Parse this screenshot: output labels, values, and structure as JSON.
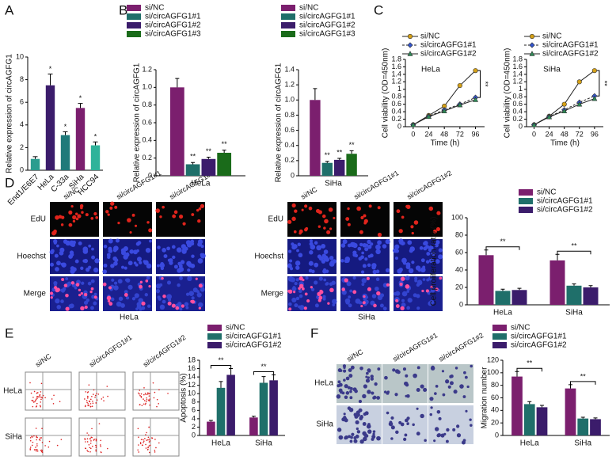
{
  "panel_labels": [
    "A",
    "B",
    "C",
    "D",
    "E",
    "F"
  ],
  "images": {
    "D": {
      "columns": [
        "si/NC",
        "si/circAGFG1#1",
        "si/circAGFG1#2"
      ],
      "rows": [
        "EdU",
        "Hoechst",
        "Merge"
      ],
      "captions": [
        "HeLa",
        "SiHa"
      ]
    },
    "E": {
      "columns": [
        "si/NC",
        "si/circAGFG1#1",
        "si/circAGFG1#2"
      ],
      "rows": [
        "HeLa",
        "SiHa"
      ]
    },
    "F": {
      "columns": [
        "si/NC",
        "si/circAGFG1#1",
        "si/circAGFG1#2"
      ],
      "rows": [
        "HeLa",
        "SiHa"
      ]
    }
  },
  "chart_data": [
    {
      "type": "bar",
      "ylabel": "Relative expression of circAGFG1",
      "categories": [
        "End1/E6E7",
        "HeLa",
        "C-33a",
        "SiHa",
        "HCC94"
      ],
      "values": [
        1.0,
        7.5,
        3.1,
        5.5,
        2.2
      ],
      "errors": [
        0.2,
        1.0,
        0.3,
        0.4,
        0.3
      ],
      "colors": [
        "#2a9d8f",
        "#3b1c6b",
        "#1f7a7a",
        "#7b1f6e",
        "#2fb39a"
      ],
      "significance": [
        null,
        "*",
        "*",
        "*",
        "*"
      ],
      "ylim": [
        0,
        10
      ],
      "yticks": [
        0,
        2,
        4,
        6,
        8,
        10
      ]
    },
    {
      "type": "bar",
      "ylabel": "Relative expression of circAGFG1",
      "categories": [
        "HeLa"
      ],
      "series": [
        {
          "name": "si/NC",
          "color": "#7b1f6e",
          "values": [
            1
          ],
          "errors": [
            0.1
          ]
        },
        {
          "name": "si/circAGFG1#1",
          "color": "#1f6f6a",
          "values": [
            0.13
          ],
          "errors": [
            0.02
          ]
        },
        {
          "name": "si/circAGFG1#2",
          "color": "#3b1c6b",
          "values": [
            0.19
          ],
          "errors": [
            0.02
          ]
        },
        {
          "name": "si/circAGFG1#3",
          "color": "#1a6b1a",
          "values": [
            0.26
          ],
          "errors": [
            0.03
          ]
        }
      ],
      "significance": [
        null,
        "**",
        "**",
        "**"
      ],
      "ylim": [
        0,
        1.2
      ],
      "yticks": [
        0,
        0.2,
        0.4,
        0.6,
        0.8,
        {
          "value": 1,
          "label": "1.0"
        },
        1.2
      ]
    },
    {
      "type": "bar",
      "ylabel": "Relative expression of circAGFG1",
      "categories": [
        "SiHa"
      ],
      "series": [
        {
          "name": "si/NC",
          "color": "#7b1f6e",
          "values": [
            1
          ],
          "errors": [
            0.15
          ]
        },
        {
          "name": "si/circAGFG1#1",
          "color": "#1f6f6a",
          "values": [
            0.17
          ],
          "errors": [
            0.02
          ]
        },
        {
          "name": "si/circAGFG1#2",
          "color": "#3b1c6b",
          "values": [
            0.21
          ],
          "errors": [
            0.02
          ]
        },
        {
          "name": "si/circAGFG1#3",
          "color": "#1a6b1a",
          "values": [
            0.29
          ],
          "errors": [
            0.04
          ]
        }
      ],
      "significance": [
        null,
        "**",
        "**",
        "**"
      ],
      "ylim": [
        0,
        1.4
      ],
      "yticks": [
        0,
        0.2,
        0.4,
        0.6,
        0.8,
        {
          "value": 1,
          "label": "1.0"
        },
        1.2,
        1.4
      ]
    },
    {
      "type": "line",
      "title": "HeLa",
      "xlabel": "Time (h)",
      "ylabel": "Cell viability (OD=450nm)",
      "x": [
        0,
        24,
        48,
        72,
        96
      ],
      "series": [
        {
          "name": "si/NC",
          "color": "#d4a017",
          "marker": "circle",
          "linestyle": "solid",
          "values": [
            0.05,
            0.3,
            0.55,
            1.1,
            1.5
          ]
        },
        {
          "name": "si/circAGFG1#1",
          "color": "#3355cc",
          "marker": "diamond",
          "linestyle": "dashed",
          "values": [
            0.05,
            0.28,
            0.45,
            0.6,
            0.78
          ]
        },
        {
          "name": "si/circAGFG1#2",
          "color": "#2e8b57",
          "marker": "triangle",
          "linestyle": "solid",
          "values": [
            0.05,
            0.27,
            0.42,
            0.58,
            0.72
          ]
        }
      ],
      "annotation": "**",
      "xlim": [
        -12,
        110
      ],
      "xticks": [
        0,
        24,
        48,
        72,
        96
      ],
      "ylim": [
        0,
        1.8
      ],
      "yticks": [
        0,
        0.2,
        0.4,
        0.6,
        0.8,
        1,
        1.2,
        1.4,
        1.6,
        1.8
      ]
    },
    {
      "type": "line",
      "title": "SiHa",
      "xlabel": "Time (h)",
      "ylabel": "Cell viability (OD=450nm)",
      "x": [
        0,
        24,
        48,
        72,
        96
      ],
      "series": [
        {
          "name": "si/NC",
          "color": "#d4a017",
          "marker": "circle",
          "linestyle": "solid",
          "values": [
            0.05,
            0.28,
            0.6,
            1.2,
            1.5
          ]
        },
        {
          "name": "si/circAGFG1#1",
          "color": "#3355cc",
          "marker": "diamond",
          "linestyle": "dashed",
          "values": [
            0.05,
            0.27,
            0.45,
            0.65,
            0.82
          ]
        },
        {
          "name": "si/circAGFG1#2",
          "color": "#2e8b57",
          "marker": "triangle",
          "linestyle": "solid",
          "values": [
            0.05,
            0.26,
            0.42,
            0.6,
            0.75
          ]
        }
      ],
      "annotation": "**",
      "xlim": [
        -12,
        110
      ],
      "xticks": [
        0,
        24,
        48,
        72,
        96
      ],
      "ylim": [
        0,
        1.8
      ],
      "yticks": [
        0,
        0.2,
        0.4,
        0.6,
        0.8,
        1,
        1.2,
        1.4,
        1.6,
        1.8
      ]
    },
    {
      "type": "bar",
      "ylabel": "Cell proliferation ratio (%)",
      "categories": [
        "HeLa",
        "SiHa"
      ],
      "series": [
        {
          "name": "si/NC",
          "color": "#7b1f6e",
          "values": [
            57,
            51
          ],
          "errors": [
            6,
            7
          ]
        },
        {
          "name": "si/circAGFG1#1",
          "color": "#1f6f6a",
          "values": [
            16,
            22
          ],
          "errors": [
            2,
            2
          ]
        },
        {
          "name": "si/circAGFG1#2",
          "color": "#3b1c6b",
          "values": [
            17,
            20
          ],
          "errors": [
            2,
            2
          ]
        }
      ],
      "category_significance": [
        "**",
        "**"
      ],
      "ylim": [
        0,
        100
      ],
      "yticks": [
        0,
        20,
        40,
        60,
        80,
        100
      ]
    },
    {
      "type": "bar",
      "ylabel": "Apoptosis (%)",
      "categories": [
        "HeLa",
        "SiHa"
      ],
      "series": [
        {
          "name": "si/NC",
          "color": "#7b1f6e",
          "values": [
            3.3,
            4.3
          ],
          "errors": [
            0.3,
            0.3
          ]
        },
        {
          "name": "si/circAGFG1#1",
          "color": "#1f6f6a",
          "values": [
            11.4,
            12.6
          ],
          "errors": [
            1.5,
            1.5
          ]
        },
        {
          "name": "si/circAGFG1#2",
          "color": "#3b1c6b",
          "values": [
            14.5,
            13.2
          ],
          "errors": [
            1.5,
            1.3
          ]
        }
      ],
      "category_significance": [
        "**",
        "**"
      ],
      "ylim": [
        0,
        18
      ],
      "yticks": [
        0,
        2,
        4,
        6,
        8,
        10,
        12,
        14,
        16,
        18
      ]
    },
    {
      "type": "bar",
      "ylabel": "Migration number",
      "categories": [
        "HeLa",
        "SiHa"
      ],
      "series": [
        {
          "name": "si/NC",
          "color": "#7b1f6e",
          "values": [
            94,
            75
          ],
          "errors": [
            8,
            6
          ]
        },
        {
          "name": "si/circAGFG1#1",
          "color": "#1f6f6a",
          "values": [
            50,
            27
          ],
          "errors": [
            4,
            2
          ]
        },
        {
          "name": "si/circAGFG1#2",
          "color": "#3b1c6b",
          "values": [
            45,
            26
          ],
          "errors": [
            3,
            2
          ]
        }
      ],
      "category_significance": [
        "**",
        "**"
      ],
      "ylim": [
        0,
        120
      ],
      "yticks": [
        0,
        20,
        40,
        60,
        80,
        100,
        120
      ]
    }
  ]
}
